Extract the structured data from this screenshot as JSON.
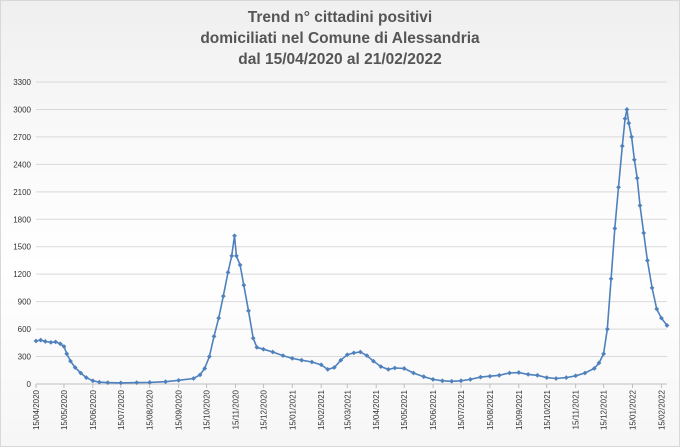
{
  "chart_data": {
    "type": "line",
    "title_lines": [
      "Trend n° cittadini positivi",
      "domiciliati nel Comune di Alessandria",
      "dal 15/04/2020 al 21/02/2022"
    ],
    "xlabel": "",
    "ylabel": "",
    "ylim": [
      0,
      3300
    ],
    "yticks": [
      0,
      300,
      600,
      900,
      1200,
      1500,
      1800,
      2100,
      2400,
      2700,
      3000,
      3300
    ],
    "xlim": [
      "2020-04-15",
      "2022-02-21"
    ],
    "xtick_dates": [
      "2020-04-15",
      "2020-05-15",
      "2020-06-15",
      "2020-07-15",
      "2020-08-15",
      "2020-09-15",
      "2020-10-15",
      "2020-11-15",
      "2020-12-15",
      "2021-01-15",
      "2021-02-15",
      "2021-03-15",
      "2021-04-15",
      "2021-05-15",
      "2021-06-15",
      "2021-07-15",
      "2021-08-15",
      "2021-09-15",
      "2021-10-15",
      "2021-11-15",
      "2021-12-15",
      "2022-01-15",
      "2022-02-15"
    ],
    "xtick_labels": [
      "15/04/2020",
      "15/05/2020",
      "15/06/2020",
      "15/07/2020",
      "15/08/2020",
      "15/09/2020",
      "15/10/2020",
      "15/11/2020",
      "15/12/2020",
      "15/01/2021",
      "15/02/2021",
      "15/03/2021",
      "15/04/2021",
      "15/05/2021",
      "15/06/2021",
      "15/07/2021",
      "15/08/2021",
      "15/09/2021",
      "15/10/2021",
      "15/11/2021",
      "15/12/2021",
      "15/01/2022",
      "15/02/2022"
    ],
    "grid": true,
    "legend": "none",
    "series": [
      {
        "color": "#4f81bd",
        "marker": "diamond",
        "points": [
          {
            "x": "2020-04-15",
            "y": 470
          },
          {
            "x": "2020-04-20",
            "y": 480
          },
          {
            "x": "2020-04-25",
            "y": 465
          },
          {
            "x": "2020-05-01",
            "y": 455
          },
          {
            "x": "2020-05-06",
            "y": 460
          },
          {
            "x": "2020-05-11",
            "y": 440
          },
          {
            "x": "2020-05-15",
            "y": 410
          },
          {
            "x": "2020-05-18",
            "y": 330
          },
          {
            "x": "2020-05-22",
            "y": 250
          },
          {
            "x": "2020-05-27",
            "y": 180
          },
          {
            "x": "2020-06-02",
            "y": 120
          },
          {
            "x": "2020-06-08",
            "y": 70
          },
          {
            "x": "2020-06-15",
            "y": 35
          },
          {
            "x": "2020-06-22",
            "y": 20
          },
          {
            "x": "2020-07-01",
            "y": 15
          },
          {
            "x": "2020-07-15",
            "y": 12
          },
          {
            "x": "2020-08-01",
            "y": 15
          },
          {
            "x": "2020-08-15",
            "y": 18
          },
          {
            "x": "2020-09-01",
            "y": 25
          },
          {
            "x": "2020-09-15",
            "y": 40
          },
          {
            "x": "2020-10-01",
            "y": 60
          },
          {
            "x": "2020-10-08",
            "y": 100
          },
          {
            "x": "2020-10-13",
            "y": 170
          },
          {
            "x": "2020-10-18",
            "y": 300
          },
          {
            "x": "2020-10-23",
            "y": 520
          },
          {
            "x": "2020-10-28",
            "y": 720
          },
          {
            "x": "2020-11-02",
            "y": 960
          },
          {
            "x": "2020-11-07",
            "y": 1220
          },
          {
            "x": "2020-11-11",
            "y": 1400
          },
          {
            "x": "2020-11-14",
            "y": 1620
          },
          {
            "x": "2020-11-16",
            "y": 1400
          },
          {
            "x": "2020-11-20",
            "y": 1300
          },
          {
            "x": "2020-11-24",
            "y": 1080
          },
          {
            "x": "2020-11-29",
            "y": 800
          },
          {
            "x": "2020-12-04",
            "y": 500
          },
          {
            "x": "2020-12-08",
            "y": 400
          },
          {
            "x": "2020-12-15",
            "y": 380
          },
          {
            "x": "2020-12-25",
            "y": 350
          },
          {
            "x": "2021-01-05",
            "y": 310
          },
          {
            "x": "2021-01-15",
            "y": 280
          },
          {
            "x": "2021-01-25",
            "y": 260
          },
          {
            "x": "2021-02-05",
            "y": 240
          },
          {
            "x": "2021-02-15",
            "y": 210
          },
          {
            "x": "2021-02-22",
            "y": 160
          },
          {
            "x": "2021-03-01",
            "y": 180
          },
          {
            "x": "2021-03-08",
            "y": 260
          },
          {
            "x": "2021-03-15",
            "y": 320
          },
          {
            "x": "2021-03-22",
            "y": 340
          },
          {
            "x": "2021-03-29",
            "y": 350
          },
          {
            "x": "2021-04-05",
            "y": 310
          },
          {
            "x": "2021-04-12",
            "y": 250
          },
          {
            "x": "2021-04-20",
            "y": 190
          },
          {
            "x": "2021-04-28",
            "y": 160
          },
          {
            "x": "2021-05-05",
            "y": 175
          },
          {
            "x": "2021-05-15",
            "y": 170
          },
          {
            "x": "2021-05-25",
            "y": 120
          },
          {
            "x": "2021-06-05",
            "y": 80
          },
          {
            "x": "2021-06-15",
            "y": 50
          },
          {
            "x": "2021-06-25",
            "y": 35
          },
          {
            "x": "2021-07-05",
            "y": 30
          },
          {
            "x": "2021-07-15",
            "y": 35
          },
          {
            "x": "2021-07-25",
            "y": 50
          },
          {
            "x": "2021-08-05",
            "y": 75
          },
          {
            "x": "2021-08-15",
            "y": 85
          },
          {
            "x": "2021-08-25",
            "y": 95
          },
          {
            "x": "2021-09-05",
            "y": 120
          },
          {
            "x": "2021-09-15",
            "y": 125
          },
          {
            "x": "2021-09-25",
            "y": 105
          },
          {
            "x": "2021-10-05",
            "y": 95
          },
          {
            "x": "2021-10-15",
            "y": 70
          },
          {
            "x": "2021-10-25",
            "y": 60
          },
          {
            "x": "2021-11-05",
            "y": 70
          },
          {
            "x": "2021-11-15",
            "y": 90
          },
          {
            "x": "2021-11-25",
            "y": 120
          },
          {
            "x": "2021-12-05",
            "y": 170
          },
          {
            "x": "2021-12-10",
            "y": 230
          },
          {
            "x": "2021-12-15",
            "y": 330
          },
          {
            "x": "2021-12-19",
            "y": 600
          },
          {
            "x": "2021-12-23",
            "y": 1150
          },
          {
            "x": "2021-12-27",
            "y": 1700
          },
          {
            "x": "2021-12-31",
            "y": 2150
          },
          {
            "x": "2022-01-04",
            "y": 2600
          },
          {
            "x": "2022-01-07",
            "y": 2900
          },
          {
            "x": "2022-01-09",
            "y": 3000
          },
          {
            "x": "2022-01-11",
            "y": 2850
          },
          {
            "x": "2022-01-14",
            "y": 2700
          },
          {
            "x": "2022-01-17",
            "y": 2450
          },
          {
            "x": "2022-01-20",
            "y": 2250
          },
          {
            "x": "2022-01-23",
            "y": 1950
          },
          {
            "x": "2022-01-27",
            "y": 1650
          },
          {
            "x": "2022-01-31",
            "y": 1350
          },
          {
            "x": "2022-02-05",
            "y": 1050
          },
          {
            "x": "2022-02-10",
            "y": 820
          },
          {
            "x": "2022-02-15",
            "y": 720
          },
          {
            "x": "2022-02-21",
            "y": 640
          }
        ]
      }
    ]
  }
}
